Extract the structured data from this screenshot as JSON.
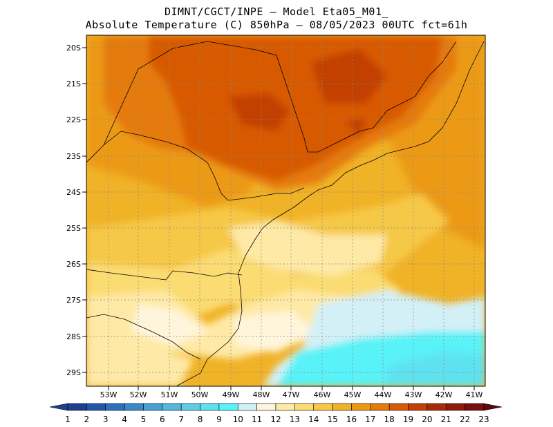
{
  "title": {
    "line1": "DIMNT/CGCT/INPE –  Model Eta05_M01_",
    "line2": "Absolute Temperature (C) 850hPa –  08/05/2023 00UTC fct=61h"
  },
  "map": {
    "lat_labels": [
      "20S",
      "21S",
      "22S",
      "23S",
      "24S",
      "25S",
      "26S",
      "27S",
      "28S",
      "29S"
    ],
    "lon_labels": [
      "53W",
      "52W",
      "51W",
      "50W",
      "49W",
      "48W",
      "47W",
      "46W",
      "45W",
      "44W",
      "43W",
      "42W",
      "41W"
    ]
  },
  "colorbar": {
    "labels": [
      "1",
      "2",
      "3",
      "4",
      "5",
      "6",
      "7",
      "8",
      "9",
      "10",
      "11",
      "12",
      "13",
      "14",
      "15",
      "16",
      "17",
      "18",
      "19",
      "20",
      "21",
      "22",
      "23"
    ],
    "colors": [
      "#1f3f8f",
      "#2456a8",
      "#2f6fbc",
      "#3b88c8",
      "#48a0d4",
      "#56b6dc",
      "#60cde6",
      "#5ee2f0",
      "#58f2f8",
      "#d3f0f7",
      "#fff5dc",
      "#fee9a6",
      "#fbdc72",
      "#f6c847",
      "#f0b227",
      "#ec9a14",
      "#e57a0a",
      "#d85a06",
      "#c24005",
      "#a62c06",
      "#8d1c0a",
      "#77100e",
      "#5e0712"
    ]
  }
}
